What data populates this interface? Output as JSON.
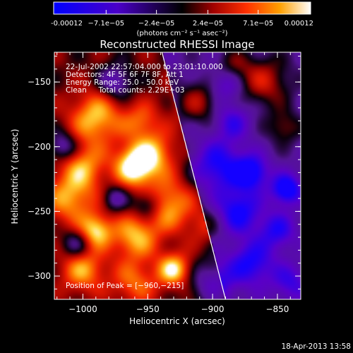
{
  "chart_data": {
    "type": "heatmap",
    "title": "Reconstructed RHESSI Image",
    "xlabel": "Heliocentric X (arcsec)",
    "ylabel": "Heliocentric Y (arcsec)",
    "xlim": [
      -1022,
      -832
    ],
    "ylim": [
      -318,
      -127
    ],
    "x_ticks": [
      -1000,
      -950,
      -900,
      -850
    ],
    "y_ticks": [
      -300,
      -250,
      -200,
      -150
    ],
    "x_tick_labels": [
      "−1000",
      "−950",
      "−900",
      "−850"
    ],
    "y_tick_labels": [
      "−300",
      "−250",
      "−200",
      "−150"
    ],
    "colorbar": {
      "tick_values": [
        -0.00012,
        -7.1e-05,
        -2.4e-05,
        2.4e-05,
        7.1e-05,
        0.00012
      ],
      "tick_labels": [
        "-0.00012",
        "−7.1e−05",
        "−2.4e−05",
        "2.4e−05",
        "7.1e−05",
        "0.00012"
      ],
      "units": "(photons cm⁻² s⁻¹ asec⁻²)",
      "range": [
        -0.00012,
        0.00012
      ]
    },
    "annotations": [
      "22-Jul-2002 22:57:04.000 to 23:01:10.000",
      "Detectors: 4F 5F 6F 7F 8F, Att 1",
      "Energy Range: 25.0 - 50.0 keV",
      "Clean     Total counts: 2.29E+03"
    ],
    "peak_label": "Position of Peak = [−960,−215]",
    "peak": [
      -960,
      -215
    ],
    "limb_line": [
      [
        -939,
        -127
      ],
      [
        -890,
        -318
      ]
    ],
    "blobs": [
      {
        "x": -960,
        "y": -215,
        "v": 1.0,
        "s": 11
      },
      {
        "x": -990,
        "y": -178,
        "v": 0.75,
        "s": 14
      },
      {
        "x": -1010,
        "y": -240,
        "v": 0.65,
        "s": 14
      },
      {
        "x": -990,
        "y": -265,
        "v": 0.8,
        "s": 9
      },
      {
        "x": -935,
        "y": -245,
        "v": 0.7,
        "s": 14
      },
      {
        "x": -945,
        "y": -205,
        "v": 0.6,
        "s": 12
      },
      {
        "x": -1000,
        "y": -215,
        "v": 0.6,
        "s": 12
      },
      {
        "x": -960,
        "y": -270,
        "v": 0.7,
        "s": 12
      },
      {
        "x": -930,
        "y": -295,
        "v": 0.85,
        "s": 9
      },
      {
        "x": -1000,
        "y": -295,
        "v": 0.65,
        "s": 12
      },
      {
        "x": -960,
        "y": -305,
        "v": 0.5,
        "s": 12
      },
      {
        "x": -910,
        "y": -165,
        "v": 0.55,
        "s": 12
      },
      {
        "x": -955,
        "y": -180,
        "v": 0.45,
        "s": 10
      },
      {
        "x": -860,
        "y": -150,
        "v": 0.6,
        "s": 14
      },
      {
        "x": -885,
        "y": -140,
        "v": 0.5,
        "s": 10
      },
      {
        "x": -845,
        "y": -185,
        "v": 0.45,
        "s": 9
      },
      {
        "x": -905,
        "y": -260,
        "v": 0.3,
        "s": 10
      },
      {
        "x": -975,
        "y": -150,
        "v": -0.6,
        "s": 9
      },
      {
        "x": -1015,
        "y": -200,
        "v": -0.6,
        "s": 8
      },
      {
        "x": -950,
        "y": -245,
        "v": -0.6,
        "s": 8
      },
      {
        "x": -975,
        "y": -240,
        "v": -0.5,
        "s": 7
      },
      {
        "x": -1005,
        "y": -275,
        "v": -0.5,
        "s": 8
      },
      {
        "x": -895,
        "y": -215,
        "v": -0.7,
        "s": 14
      },
      {
        "x": -880,
        "y": -250,
        "v": -0.75,
        "s": 12
      },
      {
        "x": -870,
        "y": -220,
        "v": -0.85,
        "s": 9
      },
      {
        "x": -843,
        "y": -233,
        "v": -0.95,
        "s": 8
      },
      {
        "x": -870,
        "y": -290,
        "v": -0.7,
        "s": 12
      },
      {
        "x": -900,
        "y": -305,
        "v": -0.6,
        "s": 12
      },
      {
        "x": -890,
        "y": -150,
        "v": -0.6,
        "s": 10
      },
      {
        "x": -885,
        "y": -180,
        "v": -0.5,
        "s": 10
      },
      {
        "x": -850,
        "y": -265,
        "v": -0.6,
        "s": 10
      },
      {
        "x": -840,
        "y": -305,
        "v": -0.5,
        "s": 10
      }
    ]
  },
  "footer": {
    "timestamp": "18-Apr-2013 13:58"
  }
}
